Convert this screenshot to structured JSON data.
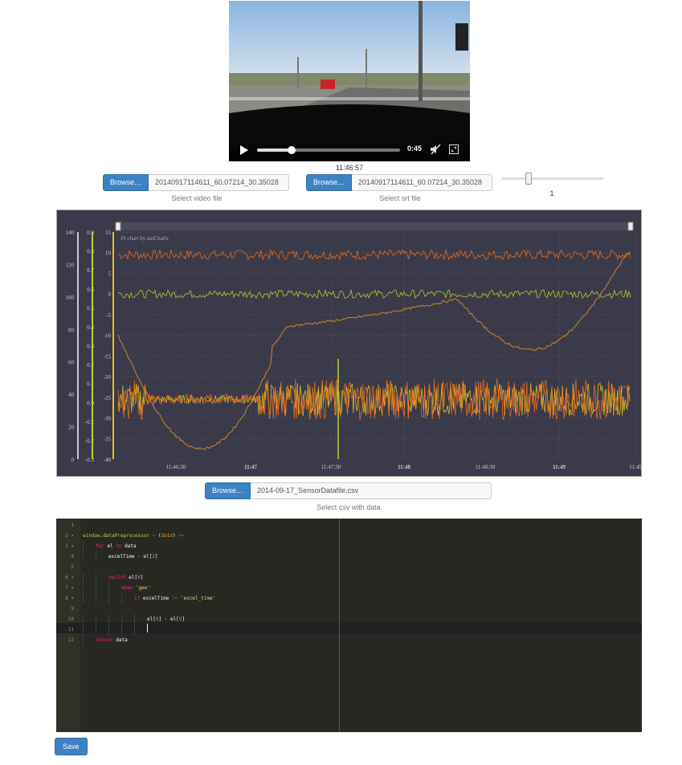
{
  "video": {
    "time": "0:45",
    "progress": 0.24,
    "current_time_label": "11:46:57"
  },
  "video_file": {
    "browse_label": "Browse…",
    "filename": "20140917114611_60.07214_30.35028",
    "help": "Select video file"
  },
  "srt_file": {
    "browse_label": "Browse…",
    "filename": "20140917114611_60.07214_30.35028",
    "help": "Select srt file"
  },
  "slider": {
    "value_label": "1",
    "position_fraction": 0.26
  },
  "csv_file": {
    "browse_label": "Browse…",
    "filename": "2014-09-17_SensorDatafile.csv",
    "help": "Select csv with data"
  },
  "chart_data": {
    "type": "line",
    "credit": "JS chart by amCharts",
    "axes": [
      {
        "id": "a1",
        "color": "#cccccc",
        "min": 0,
        "max": 140,
        "ticks": [
          "140",
          "120",
          "100",
          "80",
          "60",
          "40",
          "20",
          "0"
        ]
      },
      {
        "id": "a2",
        "color": "#b8d42a",
        "min": -0.3,
        "max": 0.9,
        "ticks": [
          "0.9",
          "0.8",
          "0.7",
          "0.6",
          "0.5",
          "0.4",
          "0.3",
          "0.2",
          "0.1",
          "0.0",
          "-0.1",
          "-0.2",
          "-0.3"
        ]
      },
      {
        "id": "a3",
        "color": "#e8c020",
        "min": -40,
        "max": 15,
        "ticks": [
          "15",
          "10",
          "5",
          "0",
          "-5",
          "-10",
          "-15",
          "-20",
          "-25",
          "-30",
          "-35",
          "-40"
        ]
      }
    ],
    "x_ticks": [
      {
        "label": "11:46:30",
        "bold": false
      },
      {
        "label": "11:47",
        "bold": true
      },
      {
        "label": "11:47:30",
        "bold": false
      },
      {
        "label": "11:48",
        "bold": true
      },
      {
        "label": "11:48:30",
        "bold": false
      },
      {
        "label": "11:49",
        "bold": true
      },
      {
        "label": "11:49",
        "bold": false
      }
    ],
    "series": [
      {
        "color": "#f07020",
        "level_axis3": 9.5,
        "noise": 1.2
      },
      {
        "color": "#b8d42a",
        "level_axis3": 0.0,
        "noise": 1.0
      },
      {
        "color": "#e8c020",
        "level_axis3": -25.5,
        "noise": 4.0
      },
      {
        "color": "#f07020",
        "level_axis3": -25.5,
        "noise": 5.0
      },
      {
        "color": "#d98a2a",
        "level_axis3": -10,
        "noise": 0.3
      }
    ],
    "cursor_x_label": "11:46:57",
    "scrollbar": true
  },
  "editor": {
    "lines": [
      {
        "n": "1",
        "indent": 0,
        "fold": false,
        "html": ""
      },
      {
        "n": "2",
        "indent": 0,
        "fold": true,
        "html": "<span class='fn'>window</span>.<span class='fn'>dataPreprocessor</span> <span class='kw'>=</span> (<span class='arg'>data</span>) <span class='kw'>=&gt;</span>"
      },
      {
        "n": "3",
        "indent": 1,
        "fold": true,
        "html": "<span class='kw'>for</span> el <span class='kw'>in</span> data"
      },
      {
        "n": "4",
        "indent": 2,
        "fold": false,
        "html": "excelTime <span class='kw'>=</span> el[<span class='num'>2</span>]"
      },
      {
        "n": "5",
        "indent": 0,
        "fold": false,
        "html": ""
      },
      {
        "n": "6",
        "indent": 2,
        "fold": true,
        "html": "<span class='kw'>switch</span> el[<span class='num'>0</span>]"
      },
      {
        "n": "7",
        "indent": 3,
        "fold": true,
        "html": "<span class='kw'>when</span> <span class='str'>'geo'</span>"
      },
      {
        "n": "8",
        "indent": 4,
        "fold": true,
        "html": "<span class='kw'>if</span> excelTime <span class='kw'>!=</span> <span class='str'>'excel_time'</span>"
      },
      {
        "n": "9",
        "indent": 0,
        "fold": false,
        "html": ""
      },
      {
        "n": "10",
        "indent": 5,
        "fold": false,
        "html": "el[<span class='num'>9</span>] <span class='kw'>=</span> el[<span class='num'>9</span>]"
      },
      {
        "n": "11",
        "indent": 5,
        "fold": false,
        "html": ""
      },
      {
        "n": "12",
        "indent": 1,
        "fold": false,
        "html": "<span class='kw'>return</span> data"
      }
    ]
  },
  "save_label": "Save"
}
